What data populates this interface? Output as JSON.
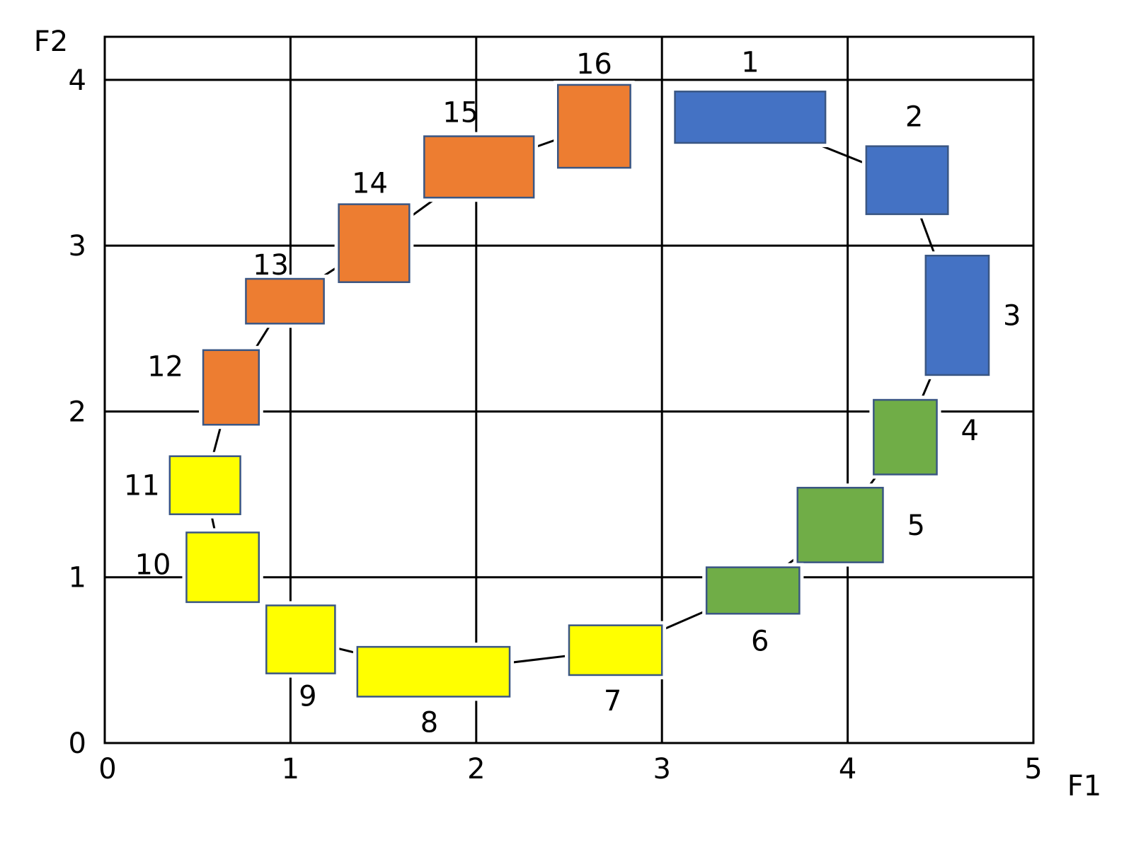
{
  "chart_data": {
    "type": "scatter",
    "title": "",
    "xlabel": "F1",
    "ylabel": "F2",
    "xlim": [
      0,
      5
    ],
    "ylim": [
      0,
      4
    ],
    "x_ticks": [
      "0",
      "1",
      "2",
      "3",
      "4",
      "5"
    ],
    "y_ticks": [
      "0",
      "1",
      "2",
      "3",
      "4"
    ],
    "grid": true,
    "colors": {
      "blue": "#4472c4",
      "orange": "#ed7d31",
      "green": "#70ad47",
      "yellow": "#ffff00"
    },
    "boxes": [
      {
        "label": "1",
        "color": "blue",
        "x0": 3.07,
        "x1": 3.88,
        "y0": 3.62,
        "y1": 3.93
      },
      {
        "label": "2",
        "color": "blue",
        "x0": 4.1,
        "x1": 4.54,
        "y0": 3.19,
        "y1": 3.6
      },
      {
        "label": "3",
        "color": "blue",
        "x0": 4.42,
        "x1": 4.76,
        "y0": 2.22,
        "y1": 2.94
      },
      {
        "label": "4",
        "color": "green",
        "x0": 4.14,
        "x1": 4.48,
        "y0": 1.62,
        "y1": 2.07
      },
      {
        "label": "5",
        "color": "green",
        "x0": 3.73,
        "x1": 4.19,
        "y0": 1.09,
        "y1": 1.54
      },
      {
        "label": "6",
        "color": "green",
        "x0": 3.24,
        "x1": 3.74,
        "y0": 0.78,
        "y1": 1.06
      },
      {
        "label": "7",
        "color": "yellow",
        "x0": 2.5,
        "x1": 3.0,
        "y0": 0.41,
        "y1": 0.71
      },
      {
        "label": "8",
        "color": "yellow",
        "x0": 1.36,
        "x1": 2.18,
        "y0": 0.28,
        "y1": 0.58
      },
      {
        "label": "9",
        "color": "yellow",
        "x0": 0.87,
        "x1": 1.24,
        "y0": 0.42,
        "y1": 0.83
      },
      {
        "label": "10",
        "color": "yellow",
        "x0": 0.44,
        "x1": 0.83,
        "y0": 0.85,
        "y1": 1.27
      },
      {
        "label": "11",
        "color": "yellow",
        "x0": 0.35,
        "x1": 0.73,
        "y0": 1.38,
        "y1": 1.73
      },
      {
        "label": "12",
        "color": "orange",
        "x0": 0.53,
        "x1": 0.83,
        "y0": 1.92,
        "y1": 2.37
      },
      {
        "label": "13",
        "color": "orange",
        "x0": 0.76,
        "x1": 1.18,
        "y0": 2.53,
        "y1": 2.8
      },
      {
        "label": "14",
        "color": "orange",
        "x0": 1.26,
        "x1": 1.64,
        "y0": 2.78,
        "y1": 3.25
      },
      {
        "label": "15",
        "color": "orange",
        "x0": 1.72,
        "x1": 2.31,
        "y0": 3.29,
        "y1": 3.66
      },
      {
        "label": "16",
        "color": "orange",
        "x0": 2.44,
        "x1": 2.83,
        "y0": 3.47,
        "y1": 3.97
      }
    ]
  }
}
